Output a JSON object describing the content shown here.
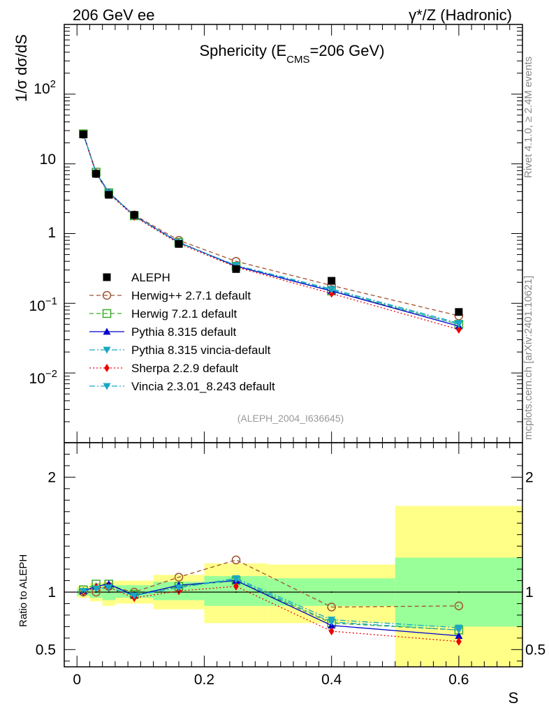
{
  "header": {
    "left": "206 GeV ee",
    "right": "γ*/Z (Hadronic)",
    "side_top": "Rivet 4.1.0, ≥ 2.4M events",
    "side_bottom": "mcplots.cern.ch [arXiv:2401.10621]"
  },
  "chart_data": [
    {
      "type": "line",
      "panel": "main",
      "title": "Sphericity (E_CMS=206 GeV)",
      "title_parts": {
        "pre": "Sphericity (E",
        "sub": "CMS",
        "post": "=206 GeV)"
      },
      "ylabel": "1/σ  dσ/dS",
      "xlabel": "S",
      "yscale": "log",
      "ylim": [
        0.001,
        1000
      ],
      "xlim": [
        -0.02,
        0.7
      ],
      "ref_label": "(ALEPH_2004_I636645)",
      "x_ticks": [
        0,
        0.2,
        0.4,
        0.6
      ],
      "x_tick_labels": [
        "0",
        "0.2",
        "0.4",
        "0.6"
      ],
      "y_tick_labels": {
        "e2": "10",
        "e1": "10",
        "e0": "1",
        "em1": "10",
        "em2": "10",
        "exp2": "2",
        "expm1": "−1",
        "expm2": "−2"
      },
      "x": [
        0.01,
        0.03,
        0.05,
        0.09,
        0.16,
        0.25,
        0.4,
        0.6
      ],
      "series": [
        {
          "name": "ALEPH",
          "color": "#000000",
          "marker": "square-filled",
          "dash": "none",
          "values": [
            26.5,
            7.2,
            3.6,
            1.85,
            0.71,
            0.31,
            0.21,
            0.075
          ],
          "label": "ALEPH"
        },
        {
          "name": "Herwig++ 2.7.1 default",
          "color": "#a0522d",
          "marker": "circle-open",
          "dash": "6,4",
          "values": [
            26.5,
            7.25,
            3.75,
            1.85,
            0.8,
            0.4,
            0.18,
            0.066
          ],
          "label": "Herwig++ 2.7.1 default"
        },
        {
          "name": "Herwig 7.2.1 default",
          "color": "#3aa92c",
          "marker": "square-open",
          "dash": "6,4",
          "values": [
            27.0,
            7.6,
            3.85,
            1.8,
            0.75,
            0.34,
            0.15,
            0.05
          ],
          "label": "Herwig 7.2.1 default"
        },
        {
          "name": "Pythia 8.315 default",
          "color": "#0000cc",
          "marker": "triangle-up",
          "dash": "none",
          "values": [
            26.8,
            7.5,
            3.9,
            1.8,
            0.75,
            0.34,
            0.15,
            0.047
          ],
          "label": "Pythia 8.315 default"
        },
        {
          "name": "Pythia 8.315 vincia-default",
          "color": "#1aa7c4",
          "marker": "triangle-down",
          "dash": "8,3,2,3",
          "values": [
            26.8,
            7.4,
            3.85,
            1.8,
            0.74,
            0.35,
            0.16,
            0.052
          ],
          "label": "Pythia 8.315 vincia-default"
        },
        {
          "name": "Sherpa 2.2.9 default",
          "color": "#ee0000",
          "marker": "diamond",
          "dash": "2,3",
          "values": [
            26.6,
            7.4,
            3.75,
            1.75,
            0.72,
            0.33,
            0.138,
            0.042
          ],
          "label": "Sherpa 2.2.9 default"
        },
        {
          "name": "Vincia 2.3.01_8.243 default",
          "color": "#1aa7c4",
          "marker": "triangle-down",
          "dash": "8,3,2,3",
          "values": [
            26.8,
            7.4,
            3.85,
            1.8,
            0.74,
            0.35,
            0.155,
            0.05
          ],
          "label": "Vincia 2.3.01_8.243 default"
        }
      ]
    },
    {
      "type": "line",
      "panel": "ratio",
      "ylabel": "Ratio to ALEPH",
      "ylim": [
        0.35,
        2.3
      ],
      "y_ticks": [
        0.5,
        1,
        2
      ],
      "y_tick_labels": [
        "0.5",
        "1",
        "2"
      ],
      "bands": [
        {
          "xlo": 0.0,
          "xhi": 0.02,
          "inner": [
            0.97,
            1.03
          ],
          "outer": [
            0.95,
            1.05
          ]
        },
        {
          "xlo": 0.02,
          "xhi": 0.04,
          "inner": [
            0.95,
            1.05
          ],
          "outer": [
            0.92,
            1.08
          ]
        },
        {
          "xlo": 0.04,
          "xhi": 0.06,
          "inner": [
            0.93,
            1.06
          ],
          "outer": [
            0.88,
            1.09
          ]
        },
        {
          "xlo": 0.06,
          "xhi": 0.12,
          "inner": [
            0.95,
            1.06
          ],
          "outer": [
            0.9,
            1.1
          ]
        },
        {
          "xlo": 0.12,
          "xhi": 0.2,
          "inner": [
            0.93,
            1.09
          ],
          "outer": [
            0.85,
            1.15
          ]
        },
        {
          "xlo": 0.2,
          "xhi": 0.3,
          "inner": [
            0.88,
            1.14
          ],
          "outer": [
            0.73,
            1.25
          ]
        },
        {
          "xlo": 0.3,
          "xhi": 0.5,
          "inner": [
            0.88,
            1.12
          ],
          "outer": [
            0.73,
            1.24
          ]
        },
        {
          "xlo": 0.5,
          "xhi": 0.7,
          "inner": [
            0.7,
            1.3
          ],
          "outer": [
            0.35,
            1.75
          ]
        }
      ],
      "series": [
        {
          "name": "Herwig++ 2.7.1 default",
          "color": "#a0522d",
          "marker": "circle-open",
          "dash": "6,4",
          "values": [
            1.0,
            1.0,
            1.05,
            1.0,
            1.13,
            1.28,
            0.87,
            0.88
          ]
        },
        {
          "name": "Herwig 7.2.1 default",
          "color": "#3aa92c",
          "marker": "square-open",
          "dash": "6,4",
          "values": [
            1.02,
            1.07,
            1.07,
            0.98,
            1.05,
            1.1,
            0.73,
            0.67
          ]
        },
        {
          "name": "Pythia 8.315 default",
          "color": "#0000cc",
          "marker": "triangle-up",
          "dash": "none",
          "values": [
            1.01,
            1.05,
            1.07,
            0.97,
            1.06,
            1.1,
            0.71,
            0.62
          ]
        },
        {
          "name": "Pythia 8.315 vincia-default",
          "color": "#1aa7c4",
          "marker": "triangle-down",
          "dash": "8,3,2,3",
          "values": [
            1.01,
            1.03,
            1.04,
            0.97,
            1.04,
            1.12,
            0.76,
            0.69
          ]
        },
        {
          "name": "Sherpa 2.2.9 default",
          "color": "#ee0000",
          "marker": "diamond",
          "dash": "2,3",
          "values": [
            1.0,
            1.04,
            1.04,
            0.95,
            1.01,
            1.05,
            0.66,
            0.57
          ]
        },
        {
          "name": "Vincia 2.3.01_8.243 default",
          "color": "#1aa7c4",
          "marker": "triangle-down",
          "dash": "8,3,2,3",
          "values": [
            1.01,
            1.03,
            1.04,
            0.97,
            1.04,
            1.11,
            0.74,
            0.67
          ]
        }
      ]
    }
  ]
}
